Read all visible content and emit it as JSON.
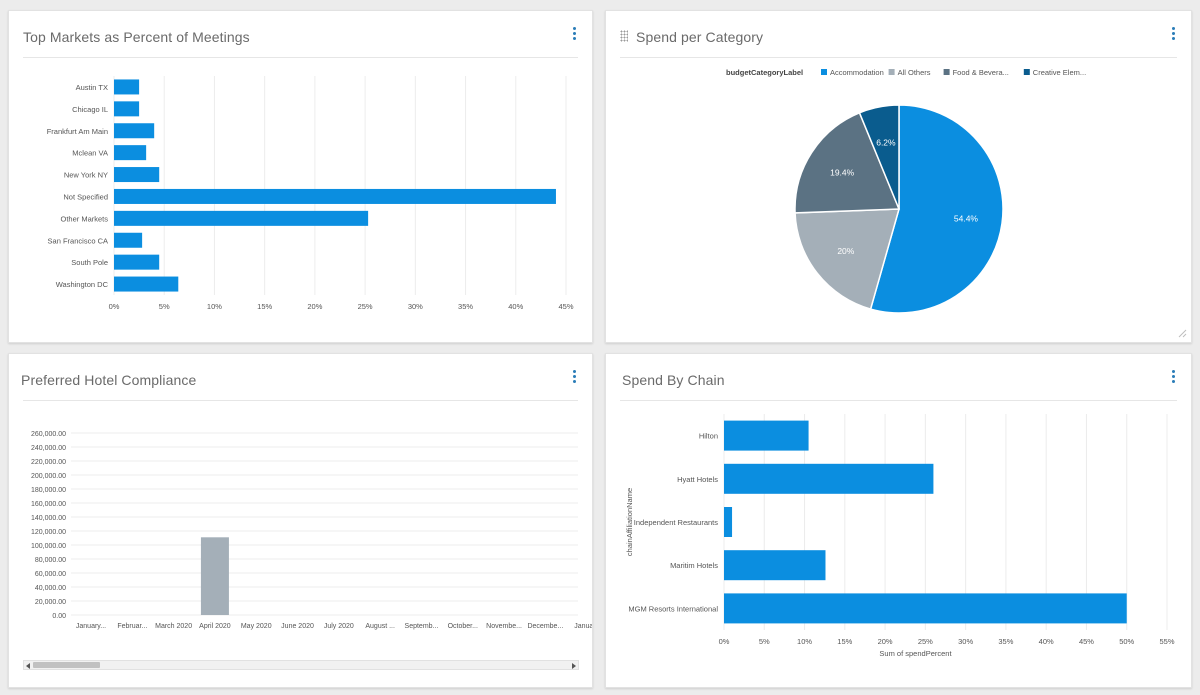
{
  "panels": {
    "top_markets": {
      "title": "Top Markets as Percent of Meetings"
    },
    "spend_category": {
      "title": "Spend per Category",
      "legend_title": "budgetCategoryLabel"
    },
    "hotel_compliance": {
      "title": "Preferred Hotel Compliance"
    },
    "spend_chain": {
      "title": "Spend By Chain"
    }
  },
  "colors": {
    "bar_blue": "#0b8ee0",
    "grey_bar": "#a4afb8",
    "accent_kebab": "#2a7db8"
  },
  "chart_data": [
    {
      "id": "top_markets",
      "type": "bar",
      "orientation": "horizontal",
      "title": "Top Markets as Percent of Meetings",
      "categories": [
        "Austin TX",
        "Chicago IL",
        "Frankfurt Am Main",
        "Mclean VA",
        "New York NY",
        "Not Specified",
        "Other Markets",
        "San Francisco CA",
        "South Pole",
        "Washington DC"
      ],
      "values": [
        2.5,
        2.5,
        4,
        3.2,
        4.5,
        44,
        25.3,
        2.8,
        4.5,
        6.4
      ],
      "xlim": [
        0,
        45
      ],
      "xticks": [
        "0%",
        "5%",
        "10%",
        "15%",
        "20%",
        "25%",
        "30%",
        "35%",
        "40%",
        "45%"
      ],
      "grid": true
    },
    {
      "id": "spend_category",
      "type": "pie",
      "title": "Spend per Category",
      "legend": {
        "title": "budgetCategoryLabel",
        "position": "top",
        "entries": [
          "Accommodation",
          "All Others",
          "Food & Bevera...",
          "Creative Elem..."
        ]
      },
      "slices": [
        {
          "label": "Accommodation",
          "value": 54.4,
          "display": "54.4%",
          "color": "#0b8ee0"
        },
        {
          "label": "All Others",
          "value": 20,
          "display": "20%",
          "color": "#a4afb8"
        },
        {
          "label": "Food & Bevera...",
          "value": 19.4,
          "display": "19.4%",
          "color": "#5b7283"
        },
        {
          "label": "Creative Elem...",
          "value": 6.2,
          "display": "6.2%",
          "color": "#0a5c8e"
        }
      ]
    },
    {
      "id": "hotel_compliance",
      "type": "bar",
      "title": "Preferred Hotel Compliance",
      "categories": [
        "January...",
        "Februar...",
        "March 2020",
        "April 2020",
        "May 2020",
        "June 2020",
        "July 2020",
        "August ...",
        "Septemb...",
        "October...",
        "Novembe...",
        "Decembe...",
        "January"
      ],
      "values": [
        0,
        0,
        0,
        111000,
        0,
        0,
        0,
        0,
        0,
        0,
        0,
        0,
        0
      ],
      "ylim": [
        0,
        260000
      ],
      "yticks": [
        "0.00",
        "20,000.00",
        "40,000.00",
        "60,000.00",
        "80,000.00",
        "100,000.00",
        "120,000.00",
        "140,000.00",
        "160,000.00",
        "180,000.00",
        "200,000.00",
        "220,000.00",
        "240,000.00",
        "260,000.00"
      ],
      "grid": true
    },
    {
      "id": "spend_chain",
      "type": "bar",
      "orientation": "horizontal",
      "title": "Spend By Chain",
      "categories": [
        "Hilton",
        "Hyatt Hotels",
        "Independent Restaurants",
        "Maritim Hotels",
        "MGM Resorts International"
      ],
      "values": [
        10.5,
        26,
        1,
        12.6,
        50
      ],
      "xlim": [
        0,
        55
      ],
      "xticks": [
        "0%",
        "5%",
        "10%",
        "15%",
        "20%",
        "25%",
        "30%",
        "35%",
        "40%",
        "45%",
        "50%",
        "55%"
      ],
      "xlabel": "Sum of spendPercent",
      "ylabel": "chainAffiliationName",
      "grid": true
    }
  ]
}
